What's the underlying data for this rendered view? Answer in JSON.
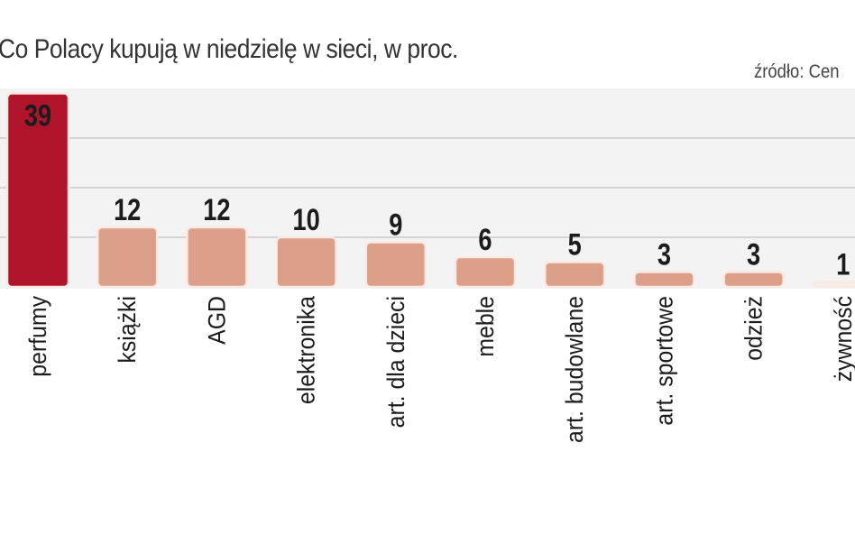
{
  "chart_data": {
    "type": "bar",
    "title": "Co Polacy kupują w niedzielę w  sieci, w proc.",
    "source": "źródło: Cen",
    "categories": [
      "perfumy",
      "książki",
      "AGD",
      "elektronika",
      "art. dla dzieci",
      "meble",
      "art. budowlane",
      "art. sportowe",
      "odzież",
      "żywność"
    ],
    "values": [
      39,
      12,
      12,
      10,
      9,
      6,
      5,
      3,
      3,
      1
    ],
    "ylim": [
      0,
      40
    ],
    "grid": true,
    "colors": {
      "highlight": "#b0142b",
      "bar": "#dc9f8a",
      "bar_small": "#f4eeec",
      "plot_bg": "#f3f3f3",
      "grid": "#d4d4d4"
    }
  }
}
